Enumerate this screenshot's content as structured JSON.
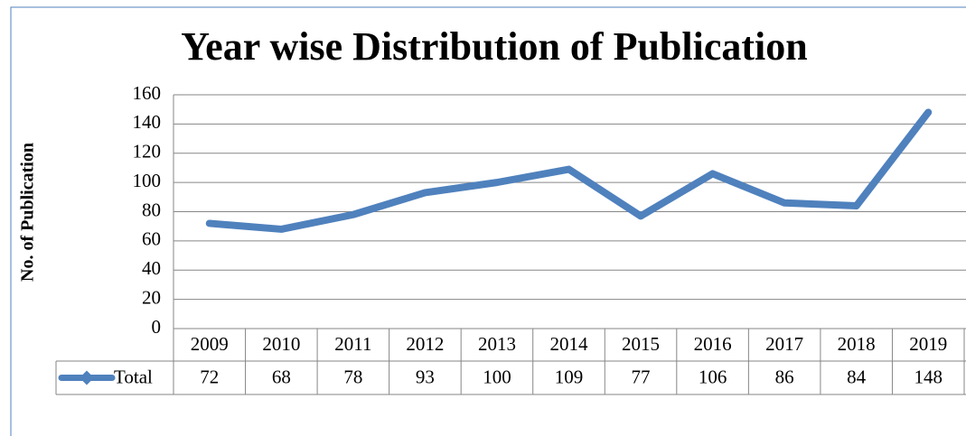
{
  "chart_data": {
    "type": "line",
    "title": "Year wise Distribution of Publication",
    "y_label": "No. of Publication",
    "categories": [
      "2009",
      "2010",
      "2011",
      "2012",
      "2013",
      "2014",
      "2015",
      "2016",
      "2017",
      "2018",
      "2019"
    ],
    "series": [
      {
        "name": "Total",
        "color": "#4f81bd",
        "values": [
          72,
          68,
          78,
          93,
          100,
          109,
          77,
          106,
          86,
          84,
          148
        ]
      }
    ],
    "ylim": [
      0,
      160
    ],
    "yticks": [
      0,
      20,
      40,
      60,
      80,
      100,
      120,
      140,
      160
    ],
    "grid": true
  }
}
